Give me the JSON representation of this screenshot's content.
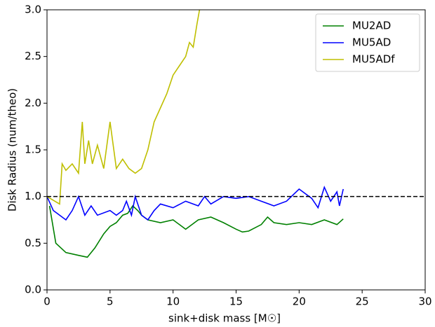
{
  "chart_data": {
    "type": "line",
    "x_label": "sink+disk mass [M☉]",
    "y_label": "Disk Radius (num/theo)",
    "xlim": [
      0,
      30
    ],
    "xticks": [
      0,
      5,
      10,
      15,
      20,
      25,
      30
    ],
    "ylim": [
      0,
      3
    ],
    "yticks": [
      {
        "value": 0,
        "label": "0.0"
      },
      0.5,
      {
        "value": 1,
        "label": "1.0"
      },
      1.5,
      {
        "value": 2,
        "label": "2.0"
      },
      2.5,
      {
        "value": 3,
        "label": "3.0"
      }
    ],
    "hline": 1,
    "legend": "upper right",
    "series": [
      {
        "name": "MU2AD",
        "color": "#008000",
        "x": [
          0.2,
          0.7,
          1.5,
          2.5,
          3.2,
          3.8,
          4.5,
          5,
          5.5,
          6,
          6.4,
          6.8,
          7.2,
          7.5,
          8,
          9,
          10,
          10.5,
          11,
          12,
          13,
          14,
          15,
          15.5,
          16,
          17,
          17.5,
          18,
          19,
          20,
          21,
          22,
          23,
          23.5
        ],
        "values": [
          0.9,
          0.5,
          0.4,
          0.37,
          0.35,
          0.45,
          0.6,
          0.68,
          0.72,
          0.8,
          0.82,
          0.9,
          0.85,
          0.8,
          0.75,
          0.72,
          0.75,
          0.7,
          0.65,
          0.75,
          0.78,
          0.72,
          0.65,
          0.62,
          0.63,
          0.7,
          0.78,
          0.72,
          0.7,
          0.72,
          0.7,
          0.75,
          0.7,
          0.76
        ]
      },
      {
        "name": "MU5AD",
        "color": "#0000ff",
        "x": [
          0,
          0.5,
          1.5,
          2,
          2.5,
          3,
          3.5,
          4,
          5,
          5.5,
          6,
          6.3,
          6.7,
          7,
          7.5,
          8,
          8.5,
          9,
          10,
          11,
          12,
          12.5,
          13,
          14,
          15,
          16,
          17,
          18,
          19,
          20,
          21,
          21.5,
          22,
          22.5,
          23,
          23.2,
          23.5
        ],
        "values": [
          1.0,
          0.85,
          0.75,
          0.85,
          1.0,
          0.8,
          0.9,
          0.8,
          0.85,
          0.8,
          0.85,
          0.95,
          0.8,
          1.0,
          0.8,
          0.75,
          0.85,
          0.92,
          0.88,
          0.95,
          0.9,
          1.0,
          0.92,
          1.0,
          0.98,
          1.0,
          0.95,
          0.9,
          0.95,
          1.08,
          0.98,
          0.88,
          1.1,
          0.95,
          1.05,
          0.9,
          1.08
        ]
      },
      {
        "name": "MU5ADf",
        "color": "#bfbf00",
        "x": [
          0,
          1,
          1.2,
          1.5,
          2,
          2.5,
          2.8,
          3,
          3.3,
          3.6,
          4,
          4.5,
          5,
          5.5,
          6,
          6.5,
          7,
          7.5,
          8,
          8.5,
          9,
          9.5,
          10,
          10.5,
          11,
          11.3,
          11.6,
          11.9,
          12.1
        ],
        "values": [
          1.0,
          0.92,
          1.35,
          1.28,
          1.35,
          1.25,
          1.8,
          1.35,
          1.6,
          1.35,
          1.55,
          1.3,
          1.8,
          1.3,
          1.4,
          1.3,
          1.25,
          1.3,
          1.5,
          1.8,
          1.95,
          2.1,
          2.3,
          2.4,
          2.5,
          2.65,
          2.6,
          2.85,
          3.0
        ]
      }
    ]
  }
}
